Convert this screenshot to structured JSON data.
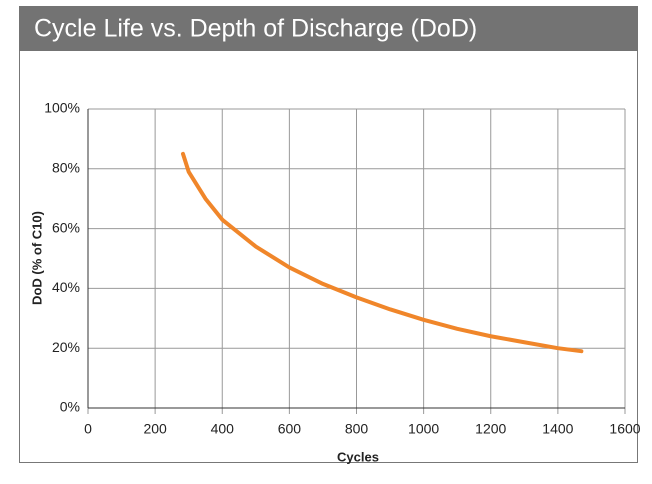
{
  "chart_data": {
    "type": "line",
    "title": "Cycle Life vs. Depth of Discharge (DoD)",
    "x_label": "Cycles",
    "y_label": "DoD (% of C10)",
    "x": [
      283,
      300,
      350,
      400,
      500,
      600,
      700,
      800,
      900,
      1000,
      1100,
      1200,
      1300,
      1400,
      1470
    ],
    "series": [
      {
        "name": "DoD",
        "color": "#f0862a",
        "values": [
          85,
          79,
          70,
          63,
          54,
          47,
          41.5,
          37,
          33,
          29.5,
          26.5,
          24,
          22,
          20,
          19
        ]
      }
    ],
    "xlim": [
      0,
      1600
    ],
    "xticks": [
      0,
      200,
      400,
      600,
      800,
      1000,
      1200,
      1400,
      1600
    ],
    "ylim": [
      0,
      100
    ],
    "yticks": [
      {
        "value": 0,
        "label": "0%"
      },
      {
        "value": 20,
        "label": "20%"
      },
      {
        "value": 40,
        "label": "40%"
      },
      {
        "value": 60,
        "label": "60%"
      },
      {
        "value": 80,
        "label": "80%"
      },
      {
        "value": 100,
        "label": "100%"
      }
    ],
    "grid": true
  }
}
